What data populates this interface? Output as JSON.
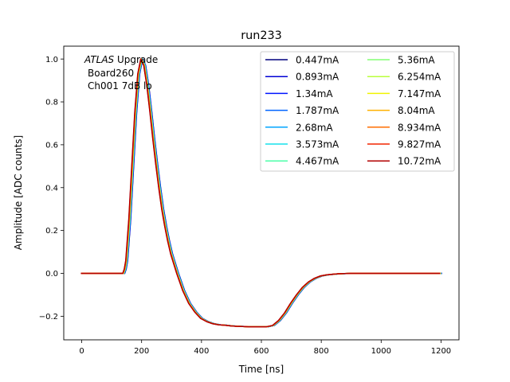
{
  "chart_data": {
    "type": "line",
    "title": "run233",
    "xlabel": "Time [ns]",
    "ylabel": "Amplitude [ADC counts]",
    "xlim": [
      -60,
      1260
    ],
    "ylim": [
      -0.31,
      1.06
    ],
    "xticks": [
      0,
      200,
      400,
      600,
      800,
      1000,
      1200
    ],
    "xtick_labels": [
      "0",
      "200",
      "400",
      "600",
      "800",
      "1000",
      "1200"
    ],
    "yticks": [
      -0.2,
      0.0,
      0.2,
      0.4,
      0.6,
      0.8,
      1.0
    ],
    "ytick_labels": [
      "−0.2",
      "0.0",
      "0.2",
      "0.4",
      "0.6",
      "0.8",
      "1.0"
    ],
    "grid": false,
    "legend_placement": "top-right",
    "annotation": {
      "line1_italic": "ATLAS",
      "line1_rest": " Upgrade",
      "line2": "Board260",
      "line3": "Ch001 7dB lo"
    },
    "waveform": {
      "x": [
        0,
        130,
        140,
        145,
        150,
        160,
        170,
        180,
        190,
        200,
        210,
        220,
        230,
        240,
        250,
        260,
        270,
        280,
        290,
        300,
        320,
        340,
        360,
        380,
        400,
        420,
        440,
        460,
        480,
        500,
        520,
        540,
        560,
        580,
        600,
        620,
        640,
        660,
        680,
        700,
        720,
        740,
        760,
        780,
        800,
        820,
        840,
        860,
        880,
        900,
        950,
        1000,
        1100,
        1200
      ],
      "y": [
        0.0,
        0.0,
        0.0,
        0.02,
        0.06,
        0.25,
        0.5,
        0.75,
        0.93,
        1.0,
        0.97,
        0.88,
        0.76,
        0.63,
        0.51,
        0.4,
        0.3,
        0.22,
        0.15,
        0.09,
        0.0,
        -0.08,
        -0.14,
        -0.18,
        -0.21,
        -0.225,
        -0.235,
        -0.24,
        -0.242,
        -0.245,
        -0.247,
        -0.248,
        -0.249,
        -0.249,
        -0.249,
        -0.249,
        -0.243,
        -0.22,
        -0.185,
        -0.14,
        -0.1,
        -0.065,
        -0.04,
        -0.023,
        -0.012,
        -0.007,
        -0.004,
        -0.002,
        -0.001,
        0.0,
        0.0,
        0.0,
        0.0,
        0.0
      ]
    },
    "series": [
      {
        "name": "0.447mA",
        "color": "#00007f",
        "shift_ns": 3.5
      },
      {
        "name": "0.893mA",
        "color": "#0000d5",
        "shift_ns": 3.0
      },
      {
        "name": "1.34mA",
        "color": "#0014ff",
        "shift_ns": 2.5
      },
      {
        "name": "1.787mA",
        "color": "#0064ff",
        "shift_ns": 2.0
      },
      {
        "name": "2.68mA",
        "color": "#00a4ff",
        "shift_ns": 1.5
      },
      {
        "name": "3.573mA",
        "color": "#16e0ec",
        "shift_ns": 1.0
      },
      {
        "name": "4.467mA",
        "color": "#4cffaa",
        "shift_ns": 0.5
      },
      {
        "name": "5.36mA",
        "color": "#83ff73",
        "shift_ns": 0.0
      },
      {
        "name": "6.254mA",
        "color": "#b9ff3c",
        "shift_ns": -0.5
      },
      {
        "name": "7.147mA",
        "color": "#f0f400",
        "shift_ns": -1.0
      },
      {
        "name": "8.04mA",
        "color": "#ffb100",
        "shift_ns": -1.5
      },
      {
        "name": "8.934mA",
        "color": "#ff6d00",
        "shift_ns": -2.0
      },
      {
        "name": "9.827mA",
        "color": "#f22500",
        "shift_ns": -2.5
      },
      {
        "name": "10.72mA",
        "color": "#b20000",
        "shift_ns": -3.0
      }
    ]
  }
}
